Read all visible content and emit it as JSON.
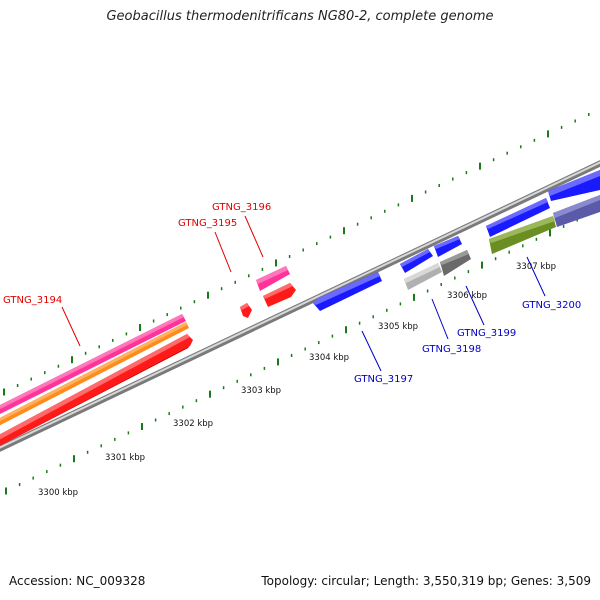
{
  "title": "Geobacillus thermodenitrificans NG80-2, complete genome",
  "footer": {
    "accession": "Accession: NC_009328",
    "stats": "Topology: circular; Length: 3,550,319 bp; Genes: 3,509"
  },
  "scale_labels": [
    "3300 kbp",
    "3301 kbp",
    "3302 kbp",
    "3303 kbp",
    "3304 kbp",
    "3305 kbp",
    "3306 kbp",
    "3307 kbp"
  ],
  "genes": [
    {
      "name": "GTNG_3194",
      "color": "#e00000"
    },
    {
      "name": "GTNG_3195",
      "color": "#e00000"
    },
    {
      "name": "GTNG_3196",
      "color": "#e00000"
    },
    {
      "name": "GTNG_3197",
      "color": "#0000c8"
    },
    {
      "name": "GTNG_3198",
      "color": "#0000c8"
    },
    {
      "name": "GTNG_3199",
      "color": "#0000c8"
    },
    {
      "name": "GTNG_3200",
      "color": "#0000c8"
    }
  ],
  "colors": {
    "forward_label": "#e00000",
    "reverse_label": "#0000c8",
    "tick": "#1a7a1a",
    "backbone": "#8a8a8a",
    "red_feature": "#ff1a1a",
    "pink_feature": "#ff3399",
    "orange_feature": "#ff8c1a",
    "blue_feature": "#1a1aff",
    "slate_feature": "#5a5aa8",
    "olive_feature": "#6b8e23",
    "gray_feature": "#9a9a9a",
    "darkgray_feature": "#6a6a6a"
  }
}
